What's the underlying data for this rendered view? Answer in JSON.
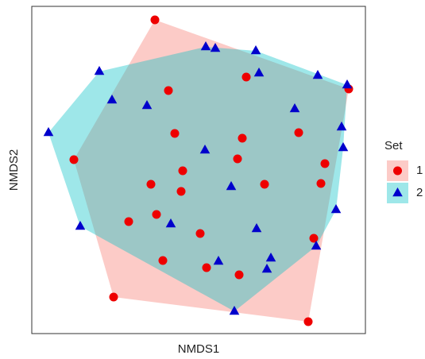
{
  "chart_data": {
    "type": "scatter",
    "x_label": "NMDS1",
    "y_label": "NMDS2",
    "legend_title": "Set",
    "legend": "right",
    "hulls": true,
    "xlim": [
      0,
      420
    ],
    "ylim": [
      0,
      412
    ],
    "series": [
      {
        "name": "1",
        "marker": "circle",
        "color": "#ee0000",
        "hull_color": "#f8766d",
        "x": [
          155,
          270,
          399,
          172,
          180,
          265,
          336,
          53,
          259,
          369,
          190,
          150,
          188,
          293,
          364,
          157,
          122,
          212,
          355,
          165,
          220,
          261,
          103,
          348
        ],
        "values": [
          395,
          323,
          308,
          306,
          252,
          246,
          253,
          219,
          220,
          214,
          205,
          188,
          179,
          188,
          189,
          150,
          141,
          126,
          120,
          92,
          83,
          74,
          46,
          15
        ]
      },
      {
        "name": "2",
        "marker": "triangle",
        "color": "#0000cc",
        "hull_color": "#00bfc4",
        "x": [
          219,
          231,
          282,
          85,
          286,
          360,
          397,
          101,
          145,
          331,
          390,
          21,
          392,
          218,
          251,
          383,
          175,
          61,
          283,
          358,
          301,
          235,
          296,
          255
        ],
        "values": [
          361,
          359,
          356,
          330,
          328,
          325,
          313,
          294,
          287,
          283,
          260,
          253,
          234,
          231,
          185,
          156,
          138,
          135,
          132,
          110,
          95,
          91,
          81,
          28
        ]
      }
    ]
  }
}
